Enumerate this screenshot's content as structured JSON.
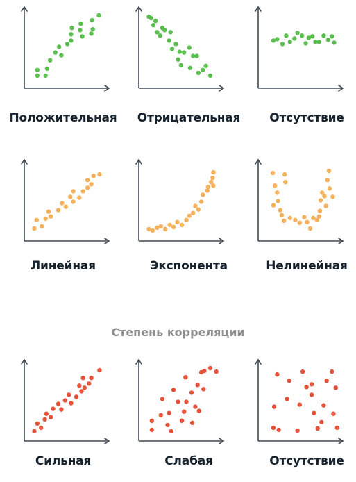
{
  "colors": {
    "axis": "#3f4a54",
    "green": "#5bbf4f",
    "orange": "#f4b05a",
    "red": "#e4533a"
  },
  "section_title": "Степень корреляции",
  "chart_data": [
    {
      "type": "scatter",
      "color": "green",
      "title": "Положительная",
      "xlim": [
        0,
        10
      ],
      "ylim": [
        0,
        10
      ],
      "points": [
        [
          1,
          1
        ],
        [
          1,
          1.8
        ],
        [
          2.1,
          1
        ],
        [
          2.3,
          2
        ],
        [
          2.7,
          3.2
        ],
        [
          3.4,
          4.3
        ],
        [
          3.9,
          5.1
        ],
        [
          4.2,
          3.9
        ],
        [
          5,
          5.5
        ],
        [
          5.5,
          6
        ],
        [
          5.6,
          7.8
        ],
        [
          5.5,
          6.9
        ],
        [
          6.7,
          7.5
        ],
        [
          6.8,
          8.4
        ],
        [
          7,
          6.6
        ],
        [
          8.2,
          7
        ],
        [
          8.3,
          8.9
        ],
        [
          8.4,
          7.6
        ],
        [
          9.2,
          9.6
        ]
      ]
    },
    {
      "type": "scatter",
      "color": "green",
      "title": "Отрицательная",
      "xlim": [
        0,
        10
      ],
      "ylim": [
        0,
        10
      ],
      "points": [
        [
          0.6,
          9.4
        ],
        [
          0.9,
          9.2
        ],
        [
          1.2,
          8.2
        ],
        [
          1.5,
          8.8
        ],
        [
          1.7,
          7.2
        ],
        [
          2.1,
          6.7
        ],
        [
          2.4,
          7.8
        ],
        [
          2.7,
          7.5
        ],
        [
          3.3,
          6
        ],
        [
          3.5,
          7.2
        ],
        [
          3.7,
          4.8
        ],
        [
          4.2,
          5.5
        ],
        [
          4.5,
          3.3
        ],
        [
          4.9,
          2.5
        ],
        [
          4.7,
          4.4
        ],
        [
          5.3,
          4.3
        ],
        [
          6,
          5
        ],
        [
          6.1,
          2.1
        ],
        [
          6.5,
          3.8
        ],
        [
          7,
          3.8
        ],
        [
          7.2,
          1.4
        ],
        [
          7.8,
          1.8
        ],
        [
          8.2,
          2.4
        ],
        [
          8.8,
          1
        ]
      ]
    },
    {
      "type": "scatter",
      "color": "green",
      "title": "Отсутствие",
      "xlim": [
        0,
        10
      ],
      "ylim": [
        0,
        10
      ],
      "points": [
        [
          1.3,
          6
        ],
        [
          1.8,
          6.2
        ],
        [
          2.5,
          5.5
        ],
        [
          3,
          6.7
        ],
        [
          3.5,
          5.8
        ],
        [
          4.1,
          6.3
        ],
        [
          4.5,
          7.1
        ],
        [
          5.1,
          6.7
        ],
        [
          5.6,
          5.6
        ],
        [
          6,
          6.4
        ],
        [
          6.5,
          6.6
        ],
        [
          6.9,
          5.8
        ],
        [
          7.4,
          5.8
        ],
        [
          8,
          6.7
        ],
        [
          8.6,
          6.1
        ],
        [
          9.1,
          6.6
        ],
        [
          9.4,
          5.7
        ]
      ]
    },
    {
      "type": "scatter",
      "color": "orange",
      "title": "Линейная",
      "xlim": [
        0,
        10
      ],
      "ylim": [
        0,
        10
      ],
      "points": [
        [
          0.6,
          1
        ],
        [
          0.9,
          2.2
        ],
        [
          1.6,
          1.3
        ],
        [
          2.1,
          2.4
        ],
        [
          2.5,
          3.4
        ],
        [
          2.8,
          2.7
        ],
        [
          3.8,
          3.6
        ],
        [
          4.3,
          4.6
        ],
        [
          4.8,
          4.1
        ],
        [
          5.4,
          5.5
        ],
        [
          5.8,
          6.3
        ],
        [
          5.8,
          4.8
        ],
        [
          6.6,
          5.4
        ],
        [
          7.1,
          6.3
        ],
        [
          7.7,
          6.8
        ],
        [
          8.2,
          7.3
        ],
        [
          8.5,
          8.5
        ],
        [
          9.3,
          8.7
        ],
        [
          7.7,
          7.9
        ]
      ]
    },
    {
      "type": "scatter",
      "color": "orange",
      "title": "Экспонента",
      "xlim": [
        0,
        10
      ],
      "ylim": [
        0,
        10
      ],
      "points": [
        [
          0.6,
          0.9
        ],
        [
          1.1,
          0.7
        ],
        [
          1.7,
          1.1
        ],
        [
          2.2,
          1.3
        ],
        [
          2.8,
          0.9
        ],
        [
          3.4,
          1.5
        ],
        [
          3.9,
          1.2
        ],
        [
          4.4,
          1.9
        ],
        [
          5,
          1.5
        ],
        [
          5.6,
          2.2
        ],
        [
          6,
          2.8
        ],
        [
          6.5,
          3.2
        ],
        [
          6.8,
          4.2
        ],
        [
          7.2,
          3.7
        ],
        [
          7.6,
          4.8
        ],
        [
          7.8,
          5.8
        ],
        [
          8.4,
          6.4
        ],
        [
          8.5,
          6.9
        ],
        [
          8.9,
          7.6
        ],
        [
          9.1,
          8.2
        ],
        [
          9.2,
          9
        ],
        [
          9.2,
          7.1
        ]
      ]
    },
    {
      "type": "scatter",
      "color": "orange",
      "title": "Нелинейная",
      "xlim": [
        0,
        10
      ],
      "ylim": [
        0,
        10
      ],
      "points": [
        [
          1.2,
          8.9
        ],
        [
          1.5,
          7.1
        ],
        [
          1.8,
          6.1
        ],
        [
          1.3,
          4.3
        ],
        [
          1.9,
          4.9
        ],
        [
          2.2,
          3.6
        ],
        [
          2.4,
          2.9
        ],
        [
          2.7,
          2.1
        ],
        [
          2.8,
          8.7
        ],
        [
          2.9,
          7.6
        ],
        [
          3.5,
          2.5
        ],
        [
          4.2,
          2.2
        ],
        [
          4.8,
          1.8
        ],
        [
          5.4,
          2.6
        ],
        [
          5.8,
          1.9
        ],
        [
          6.2,
          1
        ],
        [
          6.6,
          2.5
        ],
        [
          7.1,
          2.2
        ],
        [
          7.4,
          2.7
        ],
        [
          7.5,
          3.5
        ],
        [
          7.6,
          5
        ],
        [
          7.8,
          6.1
        ],
        [
          8.1,
          5.6
        ],
        [
          8.3,
          4.2
        ],
        [
          8.5,
          7.9
        ],
        [
          8.7,
          9.2
        ],
        [
          8.8,
          6.7
        ],
        [
          9.2,
          5.5
        ]
      ]
    },
    {
      "type": "scatter",
      "color": "red",
      "title": "Сильная",
      "xlim": [
        0,
        10
      ],
      "ylim": [
        0,
        10
      ],
      "points": [
        [
          0.6,
          0.6
        ],
        [
          1,
          1.7
        ],
        [
          1.5,
          1.1
        ],
        [
          2,
          2.3
        ],
        [
          2.2,
          3.1
        ],
        [
          2.8,
          2.6
        ],
        [
          3.1,
          3.8
        ],
        [
          3.8,
          4.5
        ],
        [
          4.2,
          3.7
        ],
        [
          4.7,
          5
        ],
        [
          5.2,
          5.8
        ],
        [
          5.5,
          4.6
        ],
        [
          6.2,
          5.5
        ],
        [
          6.6,
          7.1
        ],
        [
          6.9,
          6.3
        ],
        [
          7.3,
          6.8
        ],
        [
          7.9,
          7.4
        ],
        [
          8.2,
          8.2
        ],
        [
          9.3,
          9.3
        ],
        [
          7.1,
          8.2
        ]
      ]
    },
    {
      "type": "scatter",
      "color": "red",
      "title": "Слабая",
      "xlim": [
        0,
        10
      ],
      "ylim": [
        0,
        10
      ],
      "points": [
        [
          1,
          0.8
        ],
        [
          1,
          2.1
        ],
        [
          2.2,
          2.9
        ],
        [
          2.4,
          5.2
        ],
        [
          3.1,
          1.5
        ],
        [
          3.3,
          3.2
        ],
        [
          3.6,
          0.6
        ],
        [
          3.9,
          6.5
        ],
        [
          4.5,
          4.8
        ],
        [
          5,
          2.1
        ],
        [
          5.3,
          3.4
        ],
        [
          5.5,
          8.3
        ],
        [
          5.6,
          4.8
        ],
        [
          6.3,
          6.1
        ],
        [
          6.4,
          1.8
        ],
        [
          6.8,
          4.1
        ],
        [
          7.1,
          7.2
        ],
        [
          7.3,
          3.5
        ],
        [
          7.9,
          6.6
        ],
        [
          8,
          9.2
        ],
        [
          8.8,
          9.6
        ],
        [
          9.6,
          9.1
        ],
        [
          7.6,
          9
        ]
      ]
    },
    {
      "type": "scatter",
      "color": "red",
      "title": "Отсутствие",
      "xlim": [
        0,
        10
      ],
      "ylim": [
        0,
        10
      ],
      "points": [
        [
          1.4,
          4.1
        ],
        [
          1.8,
          8.7
        ],
        [
          1.3,
          1.1
        ],
        [
          2,
          0.8
        ],
        [
          3.1,
          5.2
        ],
        [
          3.4,
          7.8
        ],
        [
          4.5,
          0.7
        ],
        [
          4.8,
          4.4
        ],
        [
          5.2,
          9.1
        ],
        [
          5.7,
          6.9
        ],
        [
          6.4,
          5.8
        ],
        [
          6.4,
          7.3
        ],
        [
          6.7,
          3.2
        ],
        [
          7.2,
          1
        ],
        [
          7.7,
          1.9
        ],
        [
          8,
          4.3
        ],
        [
          8.4,
          7.8
        ],
        [
          9.1,
          9.1
        ],
        [
          9.3,
          3.1
        ],
        [
          9.6,
          6.8
        ],
        [
          9.8,
          1.1
        ]
      ]
    }
  ]
}
